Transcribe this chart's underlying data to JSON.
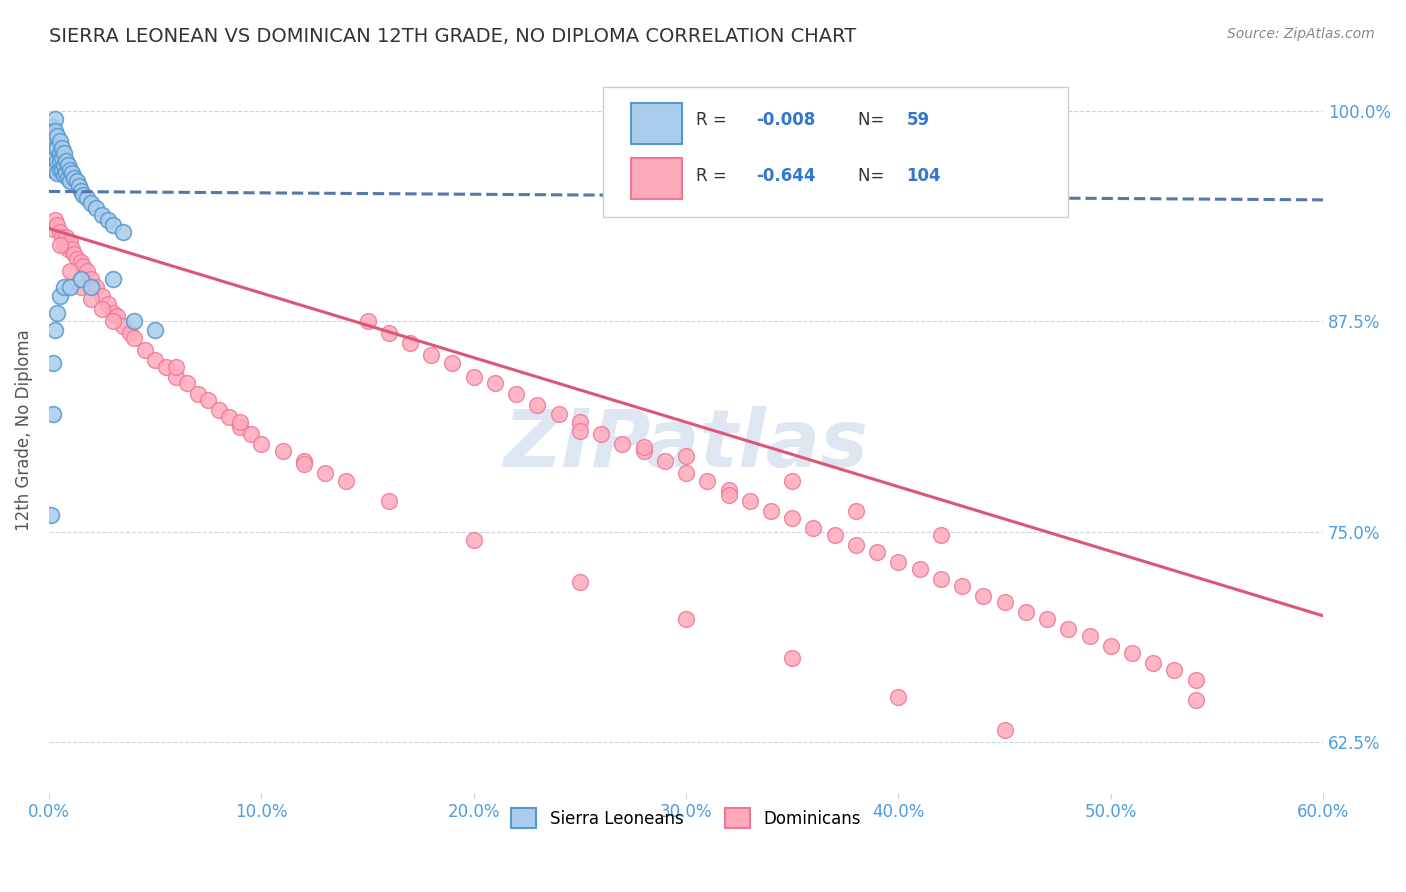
{
  "title": "SIERRA LEONEAN VS DOMINICAN 12TH GRADE, NO DIPLOMA CORRELATION CHART",
  "source_text": "Source: ZipAtlas.com",
  "ylabel": "12th Grade, No Diploma",
  "legend_label1": "Sierra Leoneans",
  "legend_label2": "Dominicans",
  "R1": -0.008,
  "N1": 59,
  "R2": -0.644,
  "N2": 104,
  "xlim": [
    0.0,
    0.6
  ],
  "ylim": [
    0.595,
    1.025
  ],
  "yticks": [
    0.625,
    0.75,
    0.875,
    1.0
  ],
  "ytick_labels": [
    "62.5%",
    "75.0%",
    "87.5%",
    "100.0%"
  ],
  "xticks": [
    0.0,
    0.1,
    0.2,
    0.3,
    0.4,
    0.5,
    0.6
  ],
  "xtick_labels": [
    "0.0%",
    "10.0%",
    "20.0%",
    "30.0%",
    "40.0%",
    "50.0%",
    "60.0%"
  ],
  "color_sl_fill": "#aaccee",
  "color_sl_edge": "#5599cc",
  "color_dom_fill": "#ffaabb",
  "color_dom_edge": "#ee7799",
  "color_trendline_sl": "#5577aa",
  "color_trendline_dom": "#dd5577",
  "color_axis_labels": "#4d9de0",
  "watermark_color": "#c8d8e8",
  "background_color": "#ffffff",
  "grid_color": "#c8d4e8",
  "sl_x": [
    0.001,
    0.001,
    0.001,
    0.002,
    0.002,
    0.002,
    0.002,
    0.002,
    0.003,
    0.003,
    0.003,
    0.003,
    0.003,
    0.004,
    0.004,
    0.004,
    0.004,
    0.005,
    0.005,
    0.005,
    0.005,
    0.006,
    0.006,
    0.006,
    0.007,
    0.007,
    0.007,
    0.008,
    0.008,
    0.009,
    0.009,
    0.01,
    0.01,
    0.011,
    0.012,
    0.013,
    0.014,
    0.015,
    0.016,
    0.018,
    0.02,
    0.022,
    0.025,
    0.028,
    0.03,
    0.035,
    0.001,
    0.002,
    0.002,
    0.003,
    0.004,
    0.005,
    0.007,
    0.01,
    0.015,
    0.02,
    0.03,
    0.04,
    0.05
  ],
  "sl_y": [
    0.985,
    0.975,
    0.97,
    0.99,
    0.98,
    0.975,
    0.97,
    0.965,
    0.995,
    0.988,
    0.978,
    0.972,
    0.965,
    0.985,
    0.978,
    0.97,
    0.963,
    0.982,
    0.975,
    0.97,
    0.965,
    0.978,
    0.972,
    0.965,
    0.975,
    0.968,
    0.962,
    0.97,
    0.963,
    0.968,
    0.96,
    0.965,
    0.958,
    0.963,
    0.96,
    0.958,
    0.955,
    0.952,
    0.95,
    0.948,
    0.945,
    0.942,
    0.938,
    0.935,
    0.932,
    0.928,
    0.76,
    0.82,
    0.85,
    0.87,
    0.88,
    0.89,
    0.895,
    0.895,
    0.9,
    0.895,
    0.9,
    0.875,
    0.87
  ],
  "dom_x": [
    0.002,
    0.003,
    0.004,
    0.005,
    0.006,
    0.007,
    0.008,
    0.009,
    0.01,
    0.011,
    0.012,
    0.013,
    0.015,
    0.016,
    0.018,
    0.02,
    0.022,
    0.025,
    0.028,
    0.03,
    0.032,
    0.035,
    0.038,
    0.04,
    0.045,
    0.05,
    0.055,
    0.06,
    0.065,
    0.07,
    0.075,
    0.08,
    0.085,
    0.09,
    0.095,
    0.1,
    0.11,
    0.12,
    0.13,
    0.14,
    0.15,
    0.16,
    0.17,
    0.18,
    0.19,
    0.2,
    0.21,
    0.22,
    0.23,
    0.24,
    0.25,
    0.26,
    0.27,
    0.28,
    0.29,
    0.3,
    0.31,
    0.32,
    0.33,
    0.34,
    0.35,
    0.36,
    0.37,
    0.38,
    0.39,
    0.4,
    0.41,
    0.42,
    0.43,
    0.44,
    0.45,
    0.46,
    0.47,
    0.48,
    0.49,
    0.5,
    0.51,
    0.52,
    0.53,
    0.54,
    0.005,
    0.01,
    0.015,
    0.02,
    0.025,
    0.03,
    0.06,
    0.09,
    0.12,
    0.16,
    0.2,
    0.25,
    0.3,
    0.35,
    0.4,
    0.45,
    0.25,
    0.3,
    0.35,
    0.28,
    0.38,
    0.42,
    0.32,
    0.54
  ],
  "dom_y": [
    0.93,
    0.935,
    0.932,
    0.928,
    0.925,
    0.92,
    0.925,
    0.918,
    0.922,
    0.918,
    0.915,
    0.912,
    0.91,
    0.908,
    0.905,
    0.9,
    0.895,
    0.89,
    0.885,
    0.88,
    0.878,
    0.872,
    0.868,
    0.865,
    0.858,
    0.852,
    0.848,
    0.842,
    0.838,
    0.832,
    0.828,
    0.822,
    0.818,
    0.812,
    0.808,
    0.802,
    0.798,
    0.792,
    0.785,
    0.78,
    0.875,
    0.868,
    0.862,
    0.855,
    0.85,
    0.842,
    0.838,
    0.832,
    0.825,
    0.82,
    0.815,
    0.808,
    0.802,
    0.798,
    0.792,
    0.785,
    0.78,
    0.775,
    0.768,
    0.762,
    0.758,
    0.752,
    0.748,
    0.742,
    0.738,
    0.732,
    0.728,
    0.722,
    0.718,
    0.712,
    0.708,
    0.702,
    0.698,
    0.692,
    0.688,
    0.682,
    0.678,
    0.672,
    0.668,
    0.662,
    0.92,
    0.905,
    0.895,
    0.888,
    0.882,
    0.875,
    0.848,
    0.815,
    0.79,
    0.768,
    0.745,
    0.72,
    0.698,
    0.675,
    0.652,
    0.632,
    0.81,
    0.795,
    0.78,
    0.8,
    0.762,
    0.748,
    0.772,
    0.65
  ],
  "trendline_sl_x0": 0.0,
  "trendline_sl_x1": 0.6,
  "trendline_sl_y0": 0.952,
  "trendline_sl_y1": 0.947,
  "trendline_dom_x0": 0.0,
  "trendline_dom_x1": 0.6,
  "trendline_dom_y0": 0.93,
  "trendline_dom_y1": 0.7
}
